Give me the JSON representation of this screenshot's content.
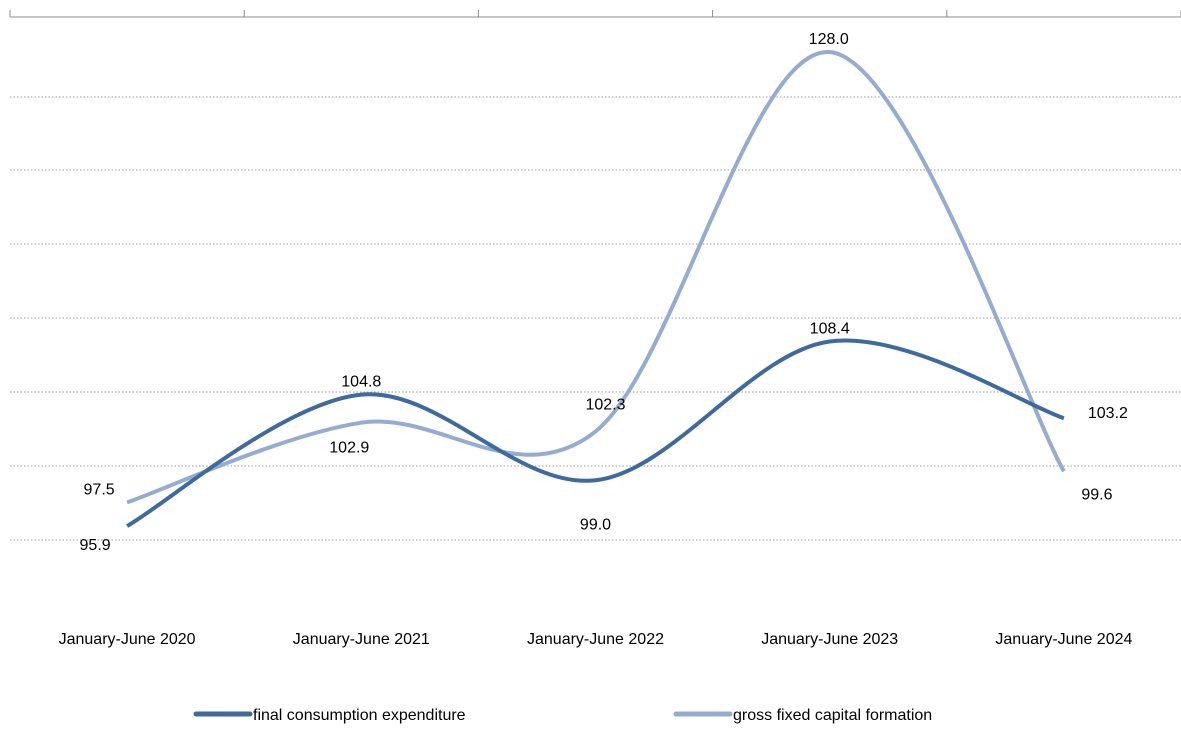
{
  "chart_data": {
    "type": "line",
    "title": "",
    "xlabel": "",
    "ylabel": "",
    "categories": [
      "January-June 2020",
      "January-June 2021",
      "January-June 2022",
      "January-June 2023",
      "January-June 2024"
    ],
    "series": [
      {
        "name": "final consumption expenditure",
        "values": [
          95.9,
          104.8,
          99.0,
          108.4,
          103.2
        ],
        "labels": [
          "95.9",
          "104.8",
          "99.0",
          "108.4",
          "103.2"
        ],
        "color": "#3e6a9e"
      },
      {
        "name": "gross fixed capital formation",
        "values": [
          97.5,
          102.9,
          102.3,
          128.0,
          99.6
        ],
        "labels": [
          "97.5",
          "102.9",
          "102.3",
          "128.0",
          "99.6"
        ],
        "color": "#95acd0"
      }
    ],
    "ylim": [
      85,
      132
    ],
    "grid": true,
    "gridline_style": "dotted",
    "smooth": true,
    "legend": "bottom"
  },
  "colors": {
    "axis": "#8c8c8c",
    "grid": "#9a9a9a"
  }
}
